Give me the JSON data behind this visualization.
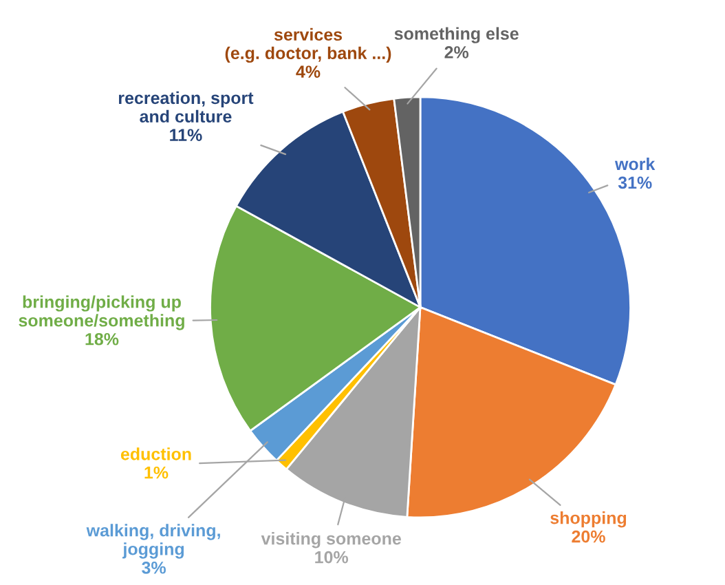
{
  "chart_data": {
    "type": "pie",
    "categories": [
      "work",
      "shopping",
      "visiting someone",
      "eduction",
      "walking, driving,\njogging",
      "bringing/picking up\nsomeone/something",
      "recreation, sport\nand culture",
      "services\n(e.g. doctor, bank ...)",
      "something else"
    ],
    "values": [
      31,
      20,
      10,
      1,
      3,
      18,
      11,
      4,
      2
    ],
    "value_labels": [
      "31%",
      "20%",
      "10%",
      "1%",
      "3%",
      "18%",
      "11%",
      "4%",
      "2%"
    ],
    "colors": [
      "#4472c4",
      "#ed7d31",
      "#a5a5a5",
      "#ffc000",
      "#5b9bd5",
      "#70ad47",
      "#264478",
      "#9e480e",
      "#636363"
    ],
    "legend": false
  }
}
